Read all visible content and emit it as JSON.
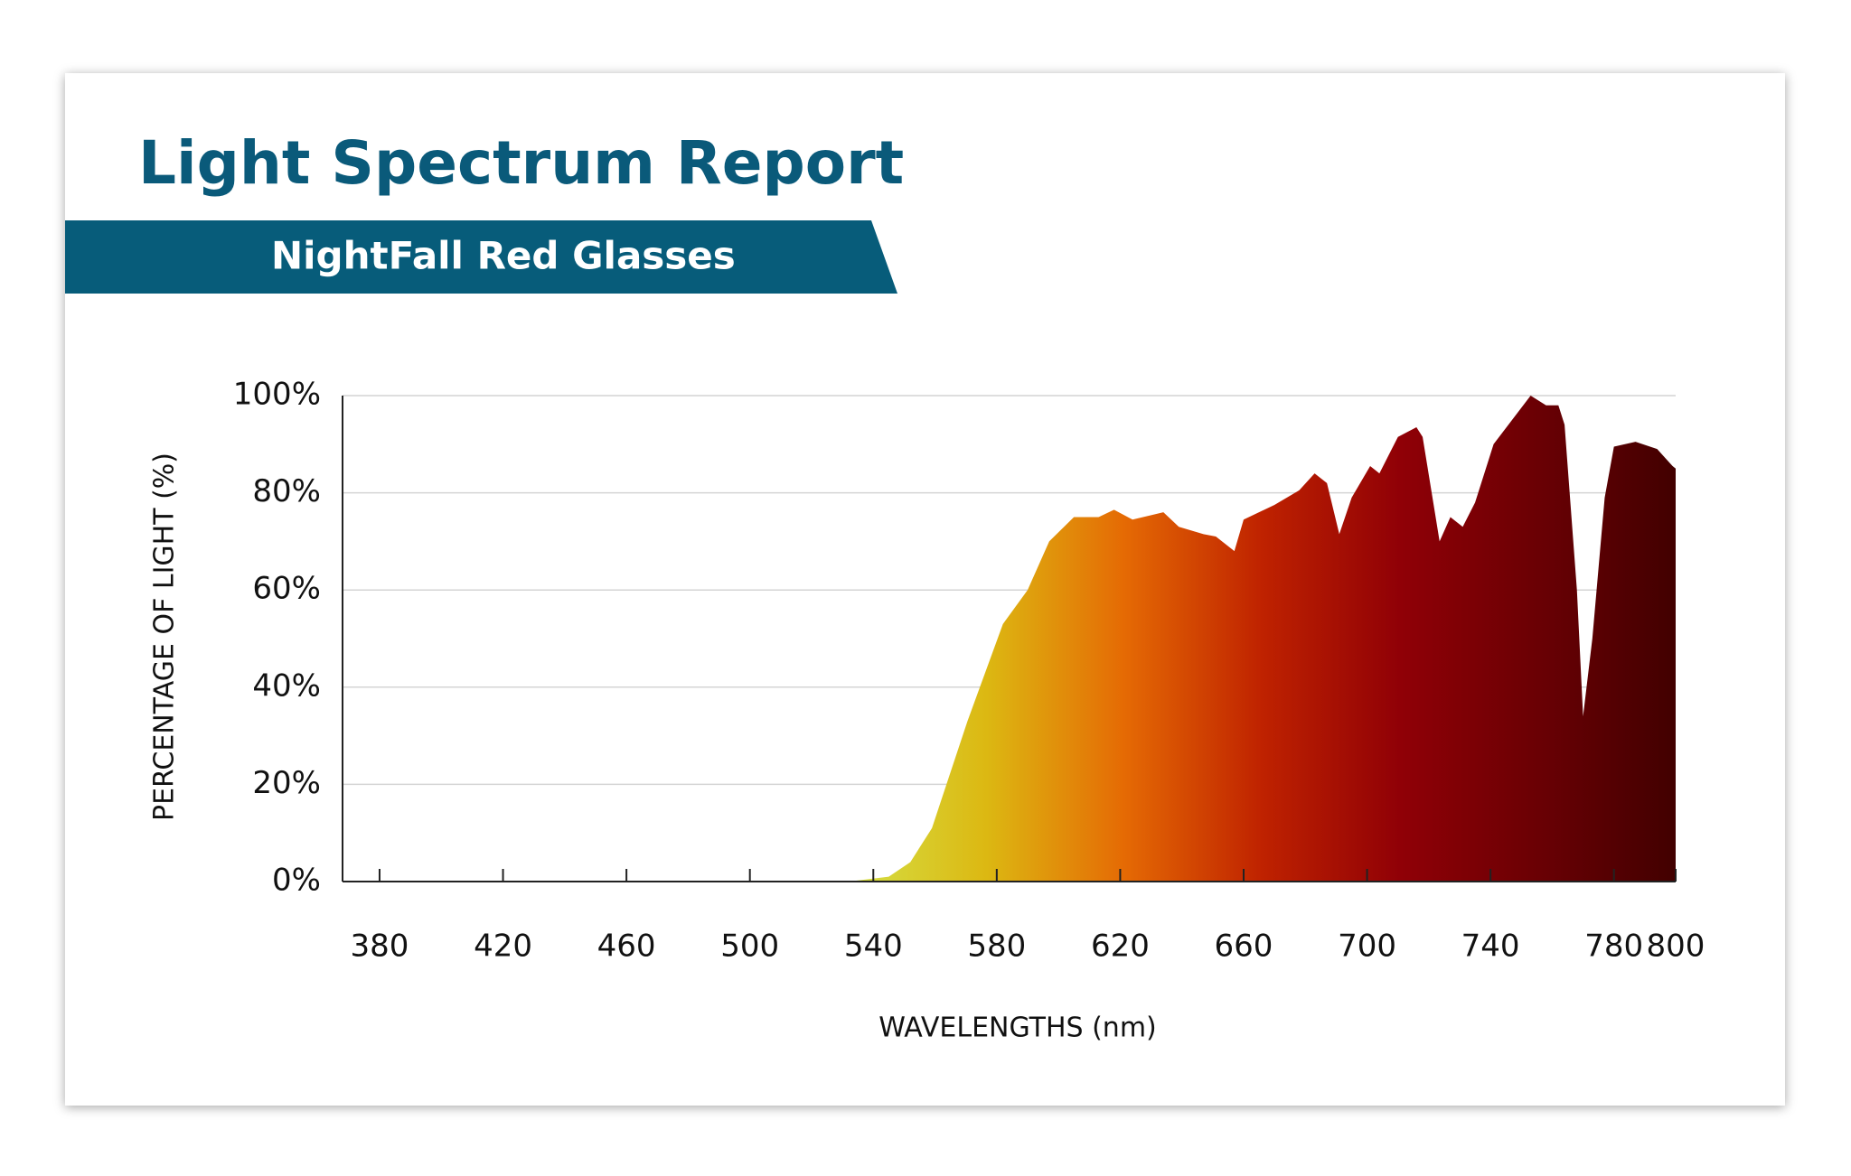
{
  "chart_data": {
    "type": "area",
    "title": "Light Spectrum Report",
    "subtitle": "NightFall Red Glasses",
    "x_label": "WAVELENGTHS (nm)",
    "y_label": "PERCENTAGE OF LIGHT (%)",
    "xlim": [
      368,
      800
    ],
    "xticks": [
      380,
      420,
      460,
      500,
      540,
      580,
      620,
      660,
      700,
      740,
      780,
      800
    ],
    "ylim": [
      0,
      100
    ],
    "yticks": [
      {
        "value": 0,
        "label": "0%"
      },
      {
        "value": 20,
        "label": "20%"
      },
      {
        "value": 40,
        "label": "40%"
      },
      {
        "value": 60,
        "label": "60%"
      },
      {
        "value": 80,
        "label": "80%"
      },
      {
        "value": 100,
        "label": "100%"
      }
    ],
    "grid": true,
    "series": [
      {
        "colors": [
          "#d4e045",
          "#dcb812",
          "#e56a04",
          "#bf2200",
          "#900006",
          "#6a0004",
          "#420000"
        ],
        "x": [
          532,
          545,
          552,
          559,
          570.5,
          582,
          590,
          597,
          605,
          613,
          618,
          624,
          634,
          639,
          647,
          651,
          657,
          660,
          670,
          678,
          683,
          687,
          691,
          695,
          701,
          704,
          710,
          716,
          718,
          723.5,
          727,
          731,
          735,
          741,
          747,
          753,
          758,
          762,
          764,
          768,
          770,
          773,
          777,
          780,
          787,
          794,
          799,
          800
        ],
        "values": [
          0,
          1,
          4,
          11,
          33,
          53,
          60,
          70,
          75,
          75,
          76.5,
          74.5,
          76,
          73,
          71.5,
          71,
          68,
          74.5,
          77.5,
          80.5,
          84,
          82,
          71.5,
          79,
          85.5,
          84,
          91.5,
          93.5,
          91.5,
          70,
          75,
          73,
          78,
          90,
          95,
          100,
          98,
          98,
          94,
          60,
          34,
          50,
          79,
          89.5,
          90.5,
          89,
          85.5,
          85
        ]
      }
    ]
  }
}
